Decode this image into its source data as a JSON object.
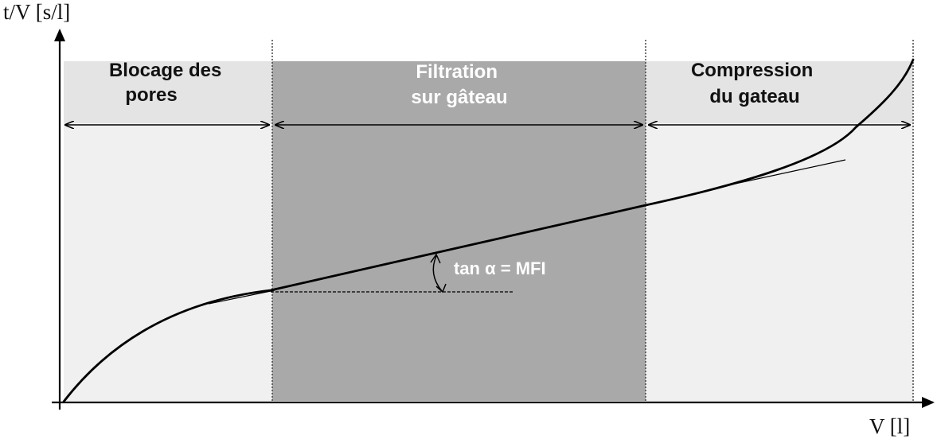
{
  "axes": {
    "y_label": "t/V [s/l]",
    "x_label": "V [l]"
  },
  "zones": [
    {
      "line1": "Blocage des",
      "line2": "pores",
      "fill": "#f0f0f0",
      "header_fill": "#e4e4e4",
      "text_color": "#111111"
    },
    {
      "line1": "Filtration",
      "line2": "sur gâteau",
      "fill": "#a9a9a9",
      "header_fill": "#a9a9a9",
      "text_color": "#ffffff"
    },
    {
      "line1": "Compression",
      "line2": "du gateau",
      "fill": "#f0f0f0",
      "header_fill": "#e4e4e4",
      "text_color": "#111111"
    }
  ],
  "annotation": {
    "formula": "tan α = MFI"
  },
  "colors": {
    "curve": "#000000",
    "axis": "#000000"
  }
}
